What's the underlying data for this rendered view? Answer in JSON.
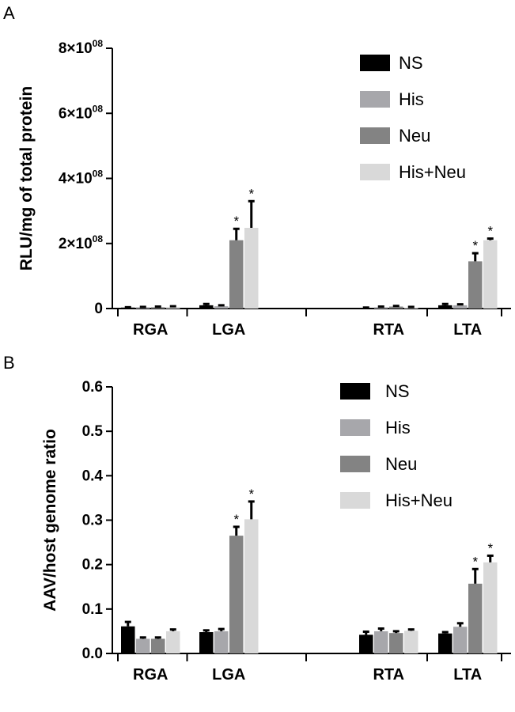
{
  "colors": {
    "NS": "#000000",
    "His": "#a7a7ab",
    "Neu": "#838383",
    "His+Neu": "#d9d9d9"
  },
  "chart_data": [
    {
      "panel": "A",
      "type": "bar",
      "ylabel": "RLU/mg of total protein",
      "ylim": [
        0,
        800000000
      ],
      "yticks": [
        {
          "value": 0,
          "label": "0"
        },
        {
          "value": 200000000,
          "label": "2×10^08"
        },
        {
          "value": 400000000,
          "label": "4×10^08"
        },
        {
          "value": 600000000,
          "label": "6×10^08"
        },
        {
          "value": 800000000,
          "label": "8×10^08"
        }
      ],
      "categories": [
        "RGA",
        "LGA",
        "RTA",
        "LTA"
      ],
      "legend": "top-right",
      "series": [
        {
          "name": "NS",
          "values": [
            3000000,
            10000000,
            2000000,
            10000000
          ],
          "errors": [
            1000000,
            4000000,
            1000000,
            4000000
          ],
          "significant": [
            false,
            false,
            false,
            false
          ]
        },
        {
          "name": "His",
          "values": [
            4000000,
            7000000,
            4000000,
            10000000
          ],
          "errors": [
            1000000,
            3000000,
            2000000,
            3000000
          ],
          "significant": [
            false,
            false,
            false,
            false
          ]
        },
        {
          "name": "Neu",
          "values": [
            4000000,
            210000000,
            6000000,
            145000000
          ],
          "errors": [
            2000000,
            35000000,
            2000000,
            25000000
          ],
          "significant": [
            false,
            true,
            false,
            true
          ]
        },
        {
          "name": "His+Neu",
          "values": [
            5000000,
            248000000,
            3000000,
            210000000
          ],
          "errors": [
            2000000,
            82000000,
            2000000,
            5000000
          ],
          "significant": [
            false,
            true,
            false,
            true
          ]
        }
      ]
    },
    {
      "panel": "B",
      "type": "bar",
      "ylabel": "AAV/host genome ratio",
      "ylim": [
        0,
        0.6
      ],
      "yticks": [
        {
          "value": 0,
          "label": "0.0"
        },
        {
          "value": 0.1,
          "label": "0.1"
        },
        {
          "value": 0.2,
          "label": "0.2"
        },
        {
          "value": 0.3,
          "label": "0.3"
        },
        {
          "value": 0.4,
          "label": "0.4"
        },
        {
          "value": 0.5,
          "label": "0.5"
        },
        {
          "value": 0.6,
          "label": "0.6"
        }
      ],
      "categories": [
        "RGA",
        "LGA",
        "RTA",
        "LTA"
      ],
      "legend": "top-right",
      "series": [
        {
          "name": "NS",
          "values": [
            0.061,
            0.048,
            0.042,
            0.045
          ],
          "errors": [
            0.01,
            0.004,
            0.007,
            0.003
          ],
          "significant": [
            false,
            false,
            false,
            false
          ]
        },
        {
          "name": "His",
          "values": [
            0.033,
            0.05,
            0.05,
            0.06
          ],
          "errors": [
            0.003,
            0.005,
            0.006,
            0.008
          ],
          "significant": [
            false,
            false,
            false,
            false
          ]
        },
        {
          "name": "Neu",
          "values": [
            0.033,
            0.265,
            0.046,
            0.157
          ],
          "errors": [
            0.003,
            0.02,
            0.004,
            0.033
          ],
          "significant": [
            false,
            true,
            false,
            true
          ]
        },
        {
          "name": "His+Neu",
          "values": [
            0.05,
            0.302,
            0.051,
            0.205
          ],
          "errors": [
            0.004,
            0.04,
            0.003,
            0.015
          ],
          "significant": [
            false,
            true,
            false,
            true
          ]
        }
      ]
    }
  ]
}
